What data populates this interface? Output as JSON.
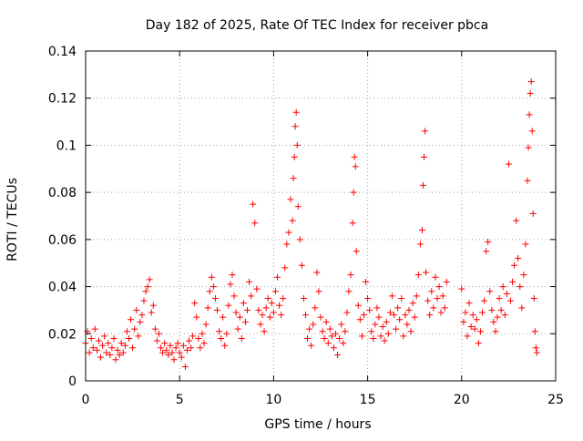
{
  "chart_data": {
    "type": "scatter",
    "title": "Day 182 of 2025, Rate Of TEC Index for receiver pbca",
    "xlabel": "GPS time / hours",
    "ylabel": "ROTI / TECUs",
    "xlim": [
      0,
      25
    ],
    "ylim": [
      0,
      0.14
    ],
    "xticks": [
      0,
      5,
      10,
      15,
      20,
      25
    ],
    "xtick_labels": [
      "0",
      "5",
      "10",
      "15",
      "20",
      "25"
    ],
    "yticks": [
      0,
      0.02,
      0.04,
      0.06,
      0.08,
      0.1,
      0.12,
      0.14
    ],
    "ytick_labels": [
      "0",
      "0.02",
      "0.04",
      "0.06",
      "0.08",
      "0.1",
      "0.12",
      "0.14"
    ],
    "grid": true,
    "marker": "plus",
    "colors": {
      "marker": "#ff0000",
      "grid": "#a0a0a0",
      "axes": "#000000"
    },
    "series": [
      {
        "points": [
          [
            0.0,
            0.016
          ],
          [
            0.1,
            0.021
          ],
          [
            0.2,
            0.012
          ],
          [
            0.3,
            0.018
          ],
          [
            0.4,
            0.014
          ],
          [
            0.5,
            0.022
          ],
          [
            0.6,
            0.013
          ],
          [
            0.7,
            0.017
          ],
          [
            0.8,
            0.01
          ],
          [
            0.9,
            0.015
          ],
          [
            1.0,
            0.019
          ],
          [
            1.1,
            0.012
          ],
          [
            1.2,
            0.016
          ],
          [
            1.3,
            0.011
          ],
          [
            1.4,
            0.014
          ],
          [
            1.5,
            0.018
          ],
          [
            1.6,
            0.009
          ],
          [
            1.7,
            0.013
          ],
          [
            1.8,
            0.011
          ],
          [
            1.9,
            0.016
          ],
          [
            2.0,
            0.012
          ],
          [
            2.1,
            0.015
          ],
          [
            2.2,
            0.021
          ],
          [
            2.3,
            0.018
          ],
          [
            2.4,
            0.026
          ],
          [
            2.5,
            0.014
          ],
          [
            2.6,
            0.022
          ],
          [
            2.7,
            0.03
          ],
          [
            2.8,
            0.019
          ],
          [
            2.9,
            0.025
          ],
          [
            3.0,
            0.028
          ],
          [
            3.1,
            0.034
          ],
          [
            3.2,
            0.038
          ],
          [
            3.3,
            0.04
          ],
          [
            3.4,
            0.043
          ],
          [
            3.5,
            0.029
          ],
          [
            3.6,
            0.032
          ],
          [
            3.7,
            0.022
          ],
          [
            3.8,
            0.017
          ],
          [
            3.9,
            0.02
          ],
          [
            4.0,
            0.014
          ],
          [
            4.1,
            0.012
          ],
          [
            4.2,
            0.016
          ],
          [
            4.3,
            0.013
          ],
          [
            4.4,
            0.011
          ],
          [
            4.5,
            0.015
          ],
          [
            4.6,
            0.012
          ],
          [
            4.7,
            0.009
          ],
          [
            4.8,
            0.014
          ],
          [
            4.9,
            0.016
          ],
          [
            5.0,
            0.012
          ],
          [
            5.1,
            0.01
          ],
          [
            5.2,
            0.015
          ],
          [
            5.3,
            0.006
          ],
          [
            5.4,
            0.013
          ],
          [
            5.5,
            0.017
          ],
          [
            5.6,
            0.014
          ],
          [
            5.7,
            0.019
          ],
          [
            5.8,
            0.033
          ],
          [
            5.9,
            0.027
          ],
          [
            6.0,
            0.018
          ],
          [
            6.1,
            0.014
          ],
          [
            6.2,
            0.02
          ],
          [
            6.3,
            0.016
          ],
          [
            6.4,
            0.024
          ],
          [
            6.5,
            0.031
          ],
          [
            6.6,
            0.038
          ],
          [
            6.7,
            0.044
          ],
          [
            6.8,
            0.04
          ],
          [
            6.9,
            0.035
          ],
          [
            7.0,
            0.03
          ],
          [
            7.1,
            0.021
          ],
          [
            7.2,
            0.018
          ],
          [
            7.3,
            0.027
          ],
          [
            7.4,
            0.015
          ],
          [
            7.5,
            0.02
          ],
          [
            7.6,
            0.032
          ],
          [
            7.7,
            0.041
          ],
          [
            7.8,
            0.045
          ],
          [
            7.9,
            0.036
          ],
          [
            8.0,
            0.029
          ],
          [
            8.1,
            0.022
          ],
          [
            8.2,
            0.027
          ],
          [
            8.3,
            0.018
          ],
          [
            8.4,
            0.033
          ],
          [
            8.5,
            0.025
          ],
          [
            8.6,
            0.03
          ],
          [
            8.7,
            0.042
          ],
          [
            8.8,
            0.036
          ],
          [
            8.9,
            0.075
          ],
          [
            9.0,
            0.067
          ],
          [
            9.1,
            0.039
          ],
          [
            9.2,
            0.03
          ],
          [
            9.3,
            0.024
          ],
          [
            9.4,
            0.028
          ],
          [
            9.5,
            0.021
          ],
          [
            9.6,
            0.031
          ],
          [
            9.7,
            0.035
          ],
          [
            9.8,
            0.027
          ],
          [
            9.9,
            0.033
          ],
          [
            10.0,
            0.029
          ],
          [
            10.1,
            0.038
          ],
          [
            10.2,
            0.044
          ],
          [
            10.3,
            0.032
          ],
          [
            10.4,
            0.028
          ],
          [
            10.5,
            0.035
          ],
          [
            10.6,
            0.048
          ],
          [
            10.7,
            0.058
          ],
          [
            10.8,
            0.063
          ],
          [
            10.9,
            0.077
          ],
          [
            11.0,
            0.068
          ],
          [
            11.05,
            0.086
          ],
          [
            11.1,
            0.095
          ],
          [
            11.15,
            0.108
          ],
          [
            11.2,
            0.114
          ],
          [
            11.25,
            0.1
          ],
          [
            11.3,
            0.074
          ],
          [
            11.4,
            0.06
          ],
          [
            11.5,
            0.049
          ],
          [
            11.6,
            0.035
          ],
          [
            11.7,
            0.028
          ],
          [
            11.8,
            0.018
          ],
          [
            11.9,
            0.022
          ],
          [
            12.0,
            0.015
          ],
          [
            12.1,
            0.024
          ],
          [
            12.2,
            0.031
          ],
          [
            12.3,
            0.046
          ],
          [
            12.4,
            0.038
          ],
          [
            12.5,
            0.027
          ],
          [
            12.6,
            0.021
          ],
          [
            12.7,
            0.018
          ],
          [
            12.8,
            0.025
          ],
          [
            12.9,
            0.016
          ],
          [
            13.0,
            0.022
          ],
          [
            13.1,
            0.019
          ],
          [
            13.2,
            0.014
          ],
          [
            13.3,
            0.02
          ],
          [
            13.4,
            0.011
          ],
          [
            13.5,
            0.018
          ],
          [
            13.6,
            0.024
          ],
          [
            13.7,
            0.016
          ],
          [
            13.8,
            0.021
          ],
          [
            13.9,
            0.029
          ],
          [
            14.0,
            0.038
          ],
          [
            14.1,
            0.045
          ],
          [
            14.2,
            0.067
          ],
          [
            14.25,
            0.08
          ],
          [
            14.3,
            0.095
          ],
          [
            14.35,
            0.091
          ],
          [
            14.4,
            0.055
          ],
          [
            14.5,
            0.032
          ],
          [
            14.6,
            0.026
          ],
          [
            14.7,
            0.019
          ],
          [
            14.8,
            0.028
          ],
          [
            14.9,
            0.042
          ],
          [
            15.0,
            0.035
          ],
          [
            15.1,
            0.03
          ],
          [
            15.2,
            0.021
          ],
          [
            15.3,
            0.018
          ],
          [
            15.4,
            0.024
          ],
          [
            15.5,
            0.031
          ],
          [
            15.6,
            0.027
          ],
          [
            15.7,
            0.019
          ],
          [
            15.8,
            0.023
          ],
          [
            15.9,
            0.017
          ],
          [
            16.0,
            0.025
          ],
          [
            16.1,
            0.02
          ],
          [
            16.2,
            0.029
          ],
          [
            16.3,
            0.036
          ],
          [
            16.4,
            0.028
          ],
          [
            16.5,
            0.022
          ],
          [
            16.6,
            0.031
          ],
          [
            16.7,
            0.026
          ],
          [
            16.8,
            0.035
          ],
          [
            16.9,
            0.019
          ],
          [
            17.0,
            0.028
          ],
          [
            17.1,
            0.024
          ],
          [
            17.2,
            0.03
          ],
          [
            17.3,
            0.021
          ],
          [
            17.4,
            0.033
          ],
          [
            17.5,
            0.027
          ],
          [
            17.6,
            0.036
          ],
          [
            17.7,
            0.045
          ],
          [
            17.8,
            0.058
          ],
          [
            17.9,
            0.064
          ],
          [
            17.95,
            0.083
          ],
          [
            18.0,
            0.095
          ],
          [
            18.05,
            0.106
          ],
          [
            18.1,
            0.046
          ],
          [
            18.2,
            0.034
          ],
          [
            18.3,
            0.028
          ],
          [
            18.4,
            0.038
          ],
          [
            18.5,
            0.031
          ],
          [
            18.6,
            0.044
          ],
          [
            18.7,
            0.035
          ],
          [
            18.8,
            0.04
          ],
          [
            18.9,
            0.029
          ],
          [
            19.0,
            0.036
          ],
          [
            19.1,
            0.031
          ],
          [
            19.2,
            0.042
          ],
          [
            20.0,
            0.039
          ],
          [
            20.1,
            0.025
          ],
          [
            20.2,
            0.029
          ],
          [
            20.3,
            0.019
          ],
          [
            20.4,
            0.033
          ],
          [
            20.5,
            0.023
          ],
          [
            20.6,
            0.028
          ],
          [
            20.7,
            0.022
          ],
          [
            20.8,
            0.026
          ],
          [
            20.9,
            0.016
          ],
          [
            21.0,
            0.021
          ],
          [
            21.1,
            0.029
          ],
          [
            21.2,
            0.034
          ],
          [
            21.3,
            0.055
          ],
          [
            21.4,
            0.059
          ],
          [
            21.5,
            0.038
          ],
          [
            21.6,
            0.03
          ],
          [
            21.7,
            0.025
          ],
          [
            21.8,
            0.021
          ],
          [
            21.9,
            0.027
          ],
          [
            22.0,
            0.035
          ],
          [
            22.1,
            0.03
          ],
          [
            22.2,
            0.04
          ],
          [
            22.3,
            0.028
          ],
          [
            22.4,
            0.037
          ],
          [
            22.5,
            0.092
          ],
          [
            22.6,
            0.034
          ],
          [
            22.7,
            0.042
          ],
          [
            22.8,
            0.049
          ],
          [
            22.9,
            0.068
          ],
          [
            23.0,
            0.052
          ],
          [
            23.1,
            0.04
          ],
          [
            23.2,
            0.031
          ],
          [
            23.3,
            0.045
          ],
          [
            23.4,
            0.058
          ],
          [
            23.5,
            0.085
          ],
          [
            23.55,
            0.099
          ],
          [
            23.6,
            0.113
          ],
          [
            23.65,
            0.122
          ],
          [
            23.7,
            0.127
          ],
          [
            23.75,
            0.106
          ],
          [
            23.8,
            0.071
          ],
          [
            23.85,
            0.035
          ],
          [
            23.9,
            0.021
          ],
          [
            23.95,
            0.014
          ],
          [
            24.0,
            0.012
          ]
        ]
      }
    ]
  }
}
